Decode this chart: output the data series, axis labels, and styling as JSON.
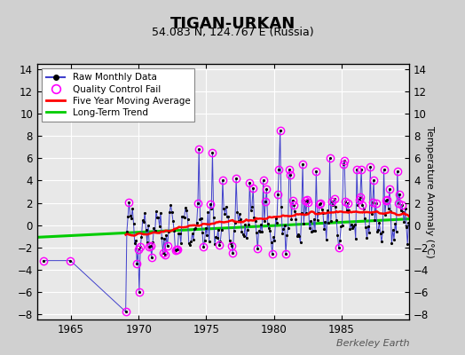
{
  "title": "TIGAN-URKAN",
  "subtitle": "54.083 N, 124.767 E (Russia)",
  "ylabel": "Temperature Anomaly (°C)",
  "watermark": "Berkeley Earth",
  "xlim": [
    1962.5,
    1990.0
  ],
  "ylim": [
    -8.5,
    14.5
  ],
  "yticks": [
    -8,
    -6,
    -4,
    -2,
    0,
    2,
    4,
    6,
    8,
    10,
    12,
    14
  ],
  "xticks": [
    1965,
    1970,
    1975,
    1980,
    1985
  ],
  "bg_color": "#d0d0d0",
  "plot_bg_color": "#e8e8e8",
  "grid_color": "#ffffff",
  "raw_color": "#4040cc",
  "dot_color": "#000000",
  "qc_color": "#ff00ff",
  "ma_color": "#ff0000",
  "trend_color": "#00cc00",
  "trend_x": [
    1962.5,
    1990.0
  ],
  "trend_y": [
    -1.1,
    0.55
  ]
}
